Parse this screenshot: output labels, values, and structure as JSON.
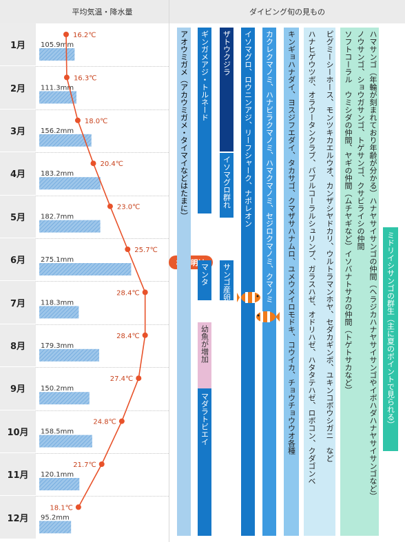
{
  "header": {
    "left": "平均気温・降水量",
    "right": "ダイビング旬の見もの"
  },
  "chart_data": {
    "type": "line",
    "categories": [
      "1月",
      "2月",
      "3月",
      "4月",
      "5月",
      "6月",
      "7月",
      "8月",
      "9月",
      "10月",
      "11月",
      "12月"
    ],
    "series": [
      {
        "values": [
          16.2,
          16.3,
          18.0,
          20.4,
          23.0,
          25.7,
          28.4,
          28.4,
          27.4,
          24.8,
          21.7,
          18.1
        ],
        "labels": [
          "16.2℃",
          "16.3℃",
          "18.0℃",
          "20.4℃",
          "23.0℃",
          "25.7℃",
          "28.4℃",
          "28.4℃",
          "27.4℃",
          "24.8℃",
          "21.7℃",
          "18.1℃"
        ]
      },
      {
        "values": [
          105.9,
          111.3,
          156.2,
          183.2,
          182.7,
          275.1,
          118.3,
          179.3,
          150.2,
          158.5,
          120.1,
          95.2
        ],
        "labels": [
          "105.9mm",
          "111.3mm",
          "156.2mm",
          "183.2mm",
          "182.7mm",
          "275.1mm",
          "118.3mm",
          "179.3mm",
          "150.2mm",
          "158.5mm",
          "120.1mm",
          "95.2mm"
        ]
      }
    ],
    "annotation": "梅雨明け",
    "colors": {
      "temp": "#e8522a",
      "rain": "#9ec6ea",
      "rain_hatch": "#6aa6dc"
    }
  },
  "sightings": {
    "col1": "アオウミガメ（アカウミガメ・タイマイなどはたまに）",
    "col2a": "ギンガメアジ・トルネード",
    "col2b": "マンタ",
    "col2c": "幼魚が増加",
    "col2d": "マダラトビエイ",
    "col3a": "ザトウクジラ",
    "col3b": "イソマグロ群れ",
    "col3c": "サンゴ産卵",
    "col4": "イソマグロ、ロウニンアジ、リーフシャーク、ナポレオン",
    "col5": "カクレクマノミ、ハナビラクマノミ、ハマクマノミ、セジロクマノミ、クマノミ",
    "col6": "キンギョハナダイ、ヨスジフエダイ、タカサゴ、クマザサハナムロ、ユメウメイロモドキ、コウイカ、チョウチョウウオ各種",
    "col7": [
      "ピグミーシーホース、モンツキカエルウオ、カンザシヤドカリ、ウルトラマンホヤ、セダカギンポ、ユキンコボウシガニ　など",
      "ハナヒゲウツボ、オラウータンクラブ、バブルコーラルシュリンプ、ガラスハゼ、オドリハゼ、ハタタテハゼ、ロボコン、クダゴンベ"
    ],
    "col8": [
      "ハマサンゴ（年輪が刻まれており年齢が分かる）ハナヤサイサンゴの仲間（ヘラジカハナヤサイサンゴやイボハダハナヤサイサンゴなど）",
      "ノウサンゴ、ショウガサンゴ、トゲサンゴ、クサビライシの仲間",
      "ソフトコーラル　ウミシダの仲間、ヤギの仲間（ムチヤギなど）イソバナトサカの仲間（トゲトサカなど）"
    ],
    "col9": "ミドリイシサンゴの群生（主に夏のポイントで見られる）"
  }
}
